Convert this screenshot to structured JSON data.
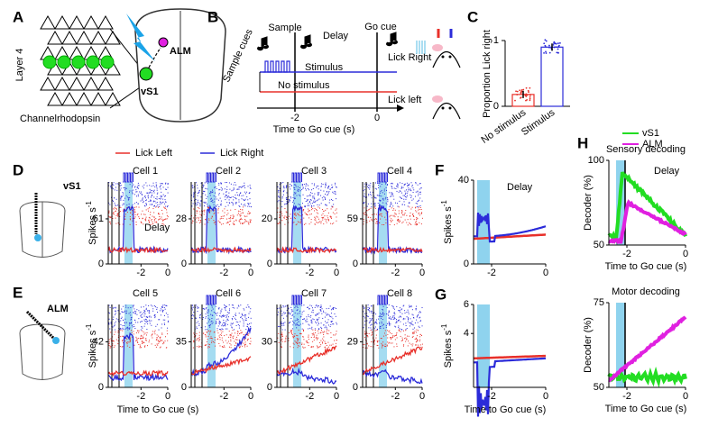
{
  "panel_a": {
    "label": "A",
    "layer": "Layer 4",
    "opsin": "Channelrhodopsin",
    "vs1": "vS1",
    "alm": "ALM"
  },
  "panel_b": {
    "label": "B",
    "sample": "Sample",
    "delay": "Delay",
    "go_cue": "Go cue",
    "sample_cues": "Sample cues",
    "stimulus": "Stimulus",
    "no_stimulus": "No stimulus",
    "lick_right": "Lick Right",
    "lick_left": "Lick left",
    "xticks": [
      -2,
      0
    ],
    "xlabel": "Time to Go cue (s)"
  },
  "panel_c": {
    "label": "C",
    "ylabel": "Proportion Lick right",
    "categories": [
      "No stimulus",
      "Stimulus"
    ],
    "values": [
      0.18,
      0.9
    ],
    "ylim": [
      0,
      1
    ],
    "yticks": [
      0,
      1
    ],
    "colors": [
      "#e8302a",
      "#2b2bd9"
    ]
  },
  "legend": [
    "Lick Left",
    "Lick Right"
  ],
  "panel_d": {
    "label": "D",
    "region": "vS1",
    "cells": [
      "Cell 1",
      "Cell 2",
      "Cell 3",
      "Cell 4"
    ],
    "yticks": [
      [
        0,
        61
      ],
      [
        0,
        28
      ],
      [
        0,
        20
      ],
      [
        0,
        59
      ]
    ],
    "ylabel": "Spikes s",
    "ylabel_sup": "-1",
    "delay": "Delay",
    "xticks": [
      -2,
      0
    ]
  },
  "panel_e": {
    "label": "E",
    "region": "ALM",
    "cells": [
      "Cell 5",
      "Cell 6",
      "Cell 7",
      "Cell 8"
    ],
    "yticks": [
      [
        0,
        42
      ],
      [
        0,
        35
      ],
      [
        0,
        30
      ],
      [
        0,
        29
      ]
    ],
    "ylabel": "Spikes s",
    "ylabel_sup": "-1",
    "xticks": [
      -2,
      0
    ],
    "xlabel": "Time to Go cue (s)"
  },
  "panel_f": {
    "label": "F",
    "yticks": [
      0,
      40
    ],
    "delay": "Delay",
    "xticks": [
      -2,
      0
    ],
    "ylabel": "Spikes s",
    "ylabel_sup": "-1"
  },
  "panel_g": {
    "label": "G",
    "yticks": [
      4,
      6
    ],
    "xticks": [
      -2,
      0
    ],
    "ylabel": "Spikes s",
    "ylabel_sup": "-1",
    "xlabel": "Time to Go cue (s)"
  },
  "panel_h": {
    "label": "H",
    "legend": [
      "vS1",
      "ALM"
    ],
    "sensory": {
      "title": "Sensory decoding",
      "yticks": [
        50,
        100
      ],
      "ylabel": "Decoder (%)",
      "delay": "Delay",
      "xticks": [
        -2,
        0
      ],
      "xlabel": "Time to Go cue (s)"
    },
    "motor": {
      "title": "Motor decoding",
      "yticks": [
        50,
        75
      ],
      "ylabel": "Decoder (%)",
      "xticks": [
        -2,
        0
      ],
      "xlabel": "Time to Go cue (s)"
    }
  }
}
